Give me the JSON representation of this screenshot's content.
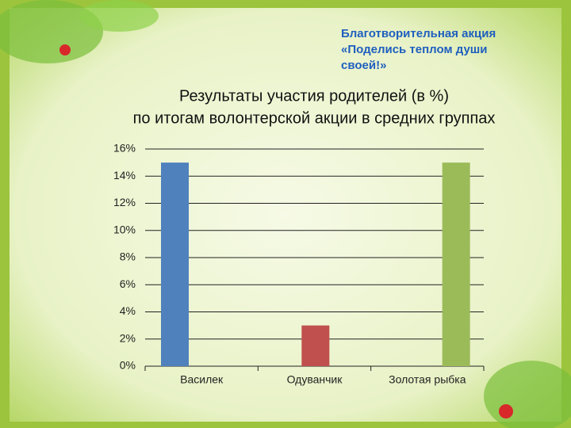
{
  "chart_data": {
    "type": "bar",
    "annotation": [
      "Благотворительная акция",
      "«Поделись теплом души",
      "своей!»"
    ],
    "title": [
      "Результаты участия родителей (в %)",
      "по итогам волонтерской акции в средних группах"
    ],
    "categories": [
      "Василек",
      "Одуванчик",
      "Золотая рыбка"
    ],
    "values": [
      15,
      3,
      15
    ],
    "colors": [
      "#4f81bd",
      "#c0504d",
      "#9bbb59"
    ],
    "ylim": [
      0,
      16
    ],
    "yticks": [
      {
        "value": 0,
        "label": "0%"
      },
      {
        "value": 2,
        "label": "2%"
      },
      {
        "value": 4,
        "label": "4%"
      },
      {
        "value": 6,
        "label": "6%"
      },
      {
        "value": 8,
        "label": "8%"
      },
      {
        "value": 10,
        "label": "10%"
      },
      {
        "value": 12,
        "label": "12%"
      },
      {
        "value": 14,
        "label": "14%"
      },
      {
        "value": 16,
        "label": "16%"
      }
    ],
    "grid": true
  }
}
